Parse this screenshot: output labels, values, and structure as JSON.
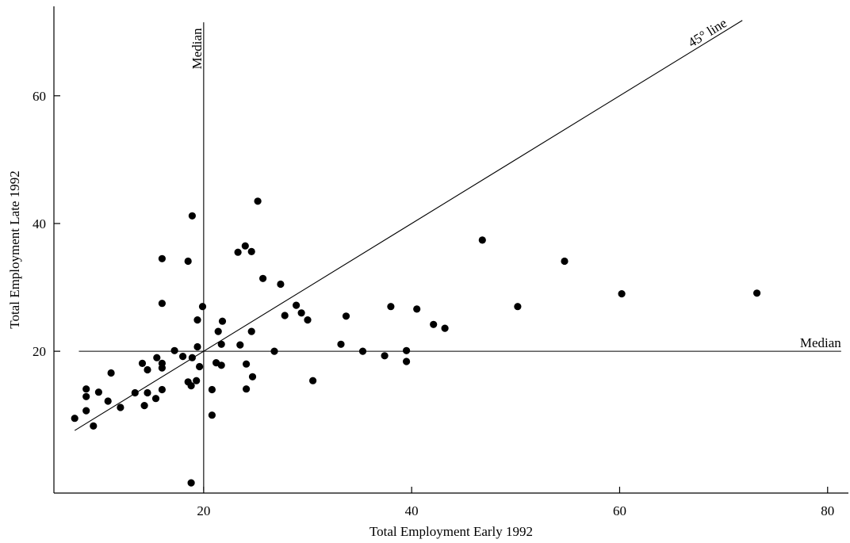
{
  "chart_data": {
    "type": "scatter",
    "xlabel": "Total Employment Early 1992",
    "ylabel": "Total Employment Late 1992",
    "xlim": [
      5.6,
      82
    ],
    "ylim": [
      -2.2,
      74
    ],
    "x_ticks": [
      20,
      40,
      60,
      80
    ],
    "y_ticks": [
      20,
      40,
      60
    ],
    "grid": false,
    "annotations": {
      "vertical_median_label": "Median",
      "horizontal_median_label": "Median",
      "diagonal_label": "45° line"
    },
    "reference_lines": {
      "vertical_median_x": 20,
      "horizontal_median_y": 20,
      "diagonal": "y = x"
    },
    "series": [
      {
        "points": [
          [
            7.6,
            9.5
          ],
          [
            8.7,
            10.7
          ],
          [
            8.7,
            12.9
          ],
          [
            8.7,
            14.1
          ],
          [
            9.4,
            8.3
          ],
          [
            9.9,
            13.6
          ],
          [
            10.8,
            12.2
          ],
          [
            11.1,
            16.6
          ],
          [
            12.0,
            11.2
          ],
          [
            13.4,
            13.5
          ],
          [
            14.1,
            18.1
          ],
          [
            14.3,
            11.5
          ],
          [
            14.6,
            13.5
          ],
          [
            14.6,
            17.1
          ],
          [
            15.4,
            12.6
          ],
          [
            15.5,
            19.0
          ],
          [
            16.0,
            14.0
          ],
          [
            16.0,
            17.4
          ],
          [
            16.0,
            18.1
          ],
          [
            16.0,
            27.5
          ],
          [
            16.0,
            34.5
          ],
          [
            17.2,
            20.1
          ],
          [
            18.0,
            19.2
          ],
          [
            18.5,
            15.2
          ],
          [
            18.5,
            34.1
          ],
          [
            18.8,
            14.6
          ],
          [
            18.9,
            19.0
          ],
          [
            18.9,
            41.2
          ],
          [
            19.3,
            15.4
          ],
          [
            19.4,
            20.7
          ],
          [
            19.4,
            24.9
          ],
          [
            19.6,
            17.6
          ],
          [
            19.9,
            27.0
          ],
          [
            20.8,
            14.0
          ],
          [
            20.8,
            10.0
          ],
          [
            21.2,
            18.2
          ],
          [
            21.4,
            23.1
          ],
          [
            21.7,
            17.8
          ],
          [
            21.7,
            21.1
          ],
          [
            21.8,
            24.7
          ],
          [
            18.8,
            -0.6
          ],
          [
            23.3,
            35.5
          ],
          [
            23.5,
            21.0
          ],
          [
            24.0,
            36.5
          ],
          [
            24.1,
            18.0
          ],
          [
            24.1,
            14.1
          ],
          [
            24.6,
            35.6
          ],
          [
            24.6,
            23.1
          ],
          [
            24.7,
            16.0
          ],
          [
            25.2,
            43.5
          ],
          [
            25.7,
            31.4
          ],
          [
            26.8,
            20.0
          ],
          [
            27.4,
            30.5
          ],
          [
            27.8,
            25.6
          ],
          [
            28.9,
            27.2
          ],
          [
            29.4,
            26.0
          ],
          [
            30.0,
            24.9
          ],
          [
            30.5,
            15.4
          ],
          [
            33.2,
            21.1
          ],
          [
            33.7,
            25.5
          ],
          [
            35.3,
            20.0
          ],
          [
            37.4,
            19.3
          ],
          [
            38.0,
            27.0
          ],
          [
            39.5,
            20.1
          ],
          [
            39.5,
            18.4
          ],
          [
            40.5,
            26.6
          ],
          [
            42.1,
            24.2
          ],
          [
            43.2,
            23.6
          ],
          [
            46.8,
            37.4
          ],
          [
            50.2,
            27.0
          ],
          [
            54.7,
            34.1
          ],
          [
            60.2,
            29.0
          ],
          [
            73.2,
            29.1
          ]
        ]
      }
    ]
  }
}
